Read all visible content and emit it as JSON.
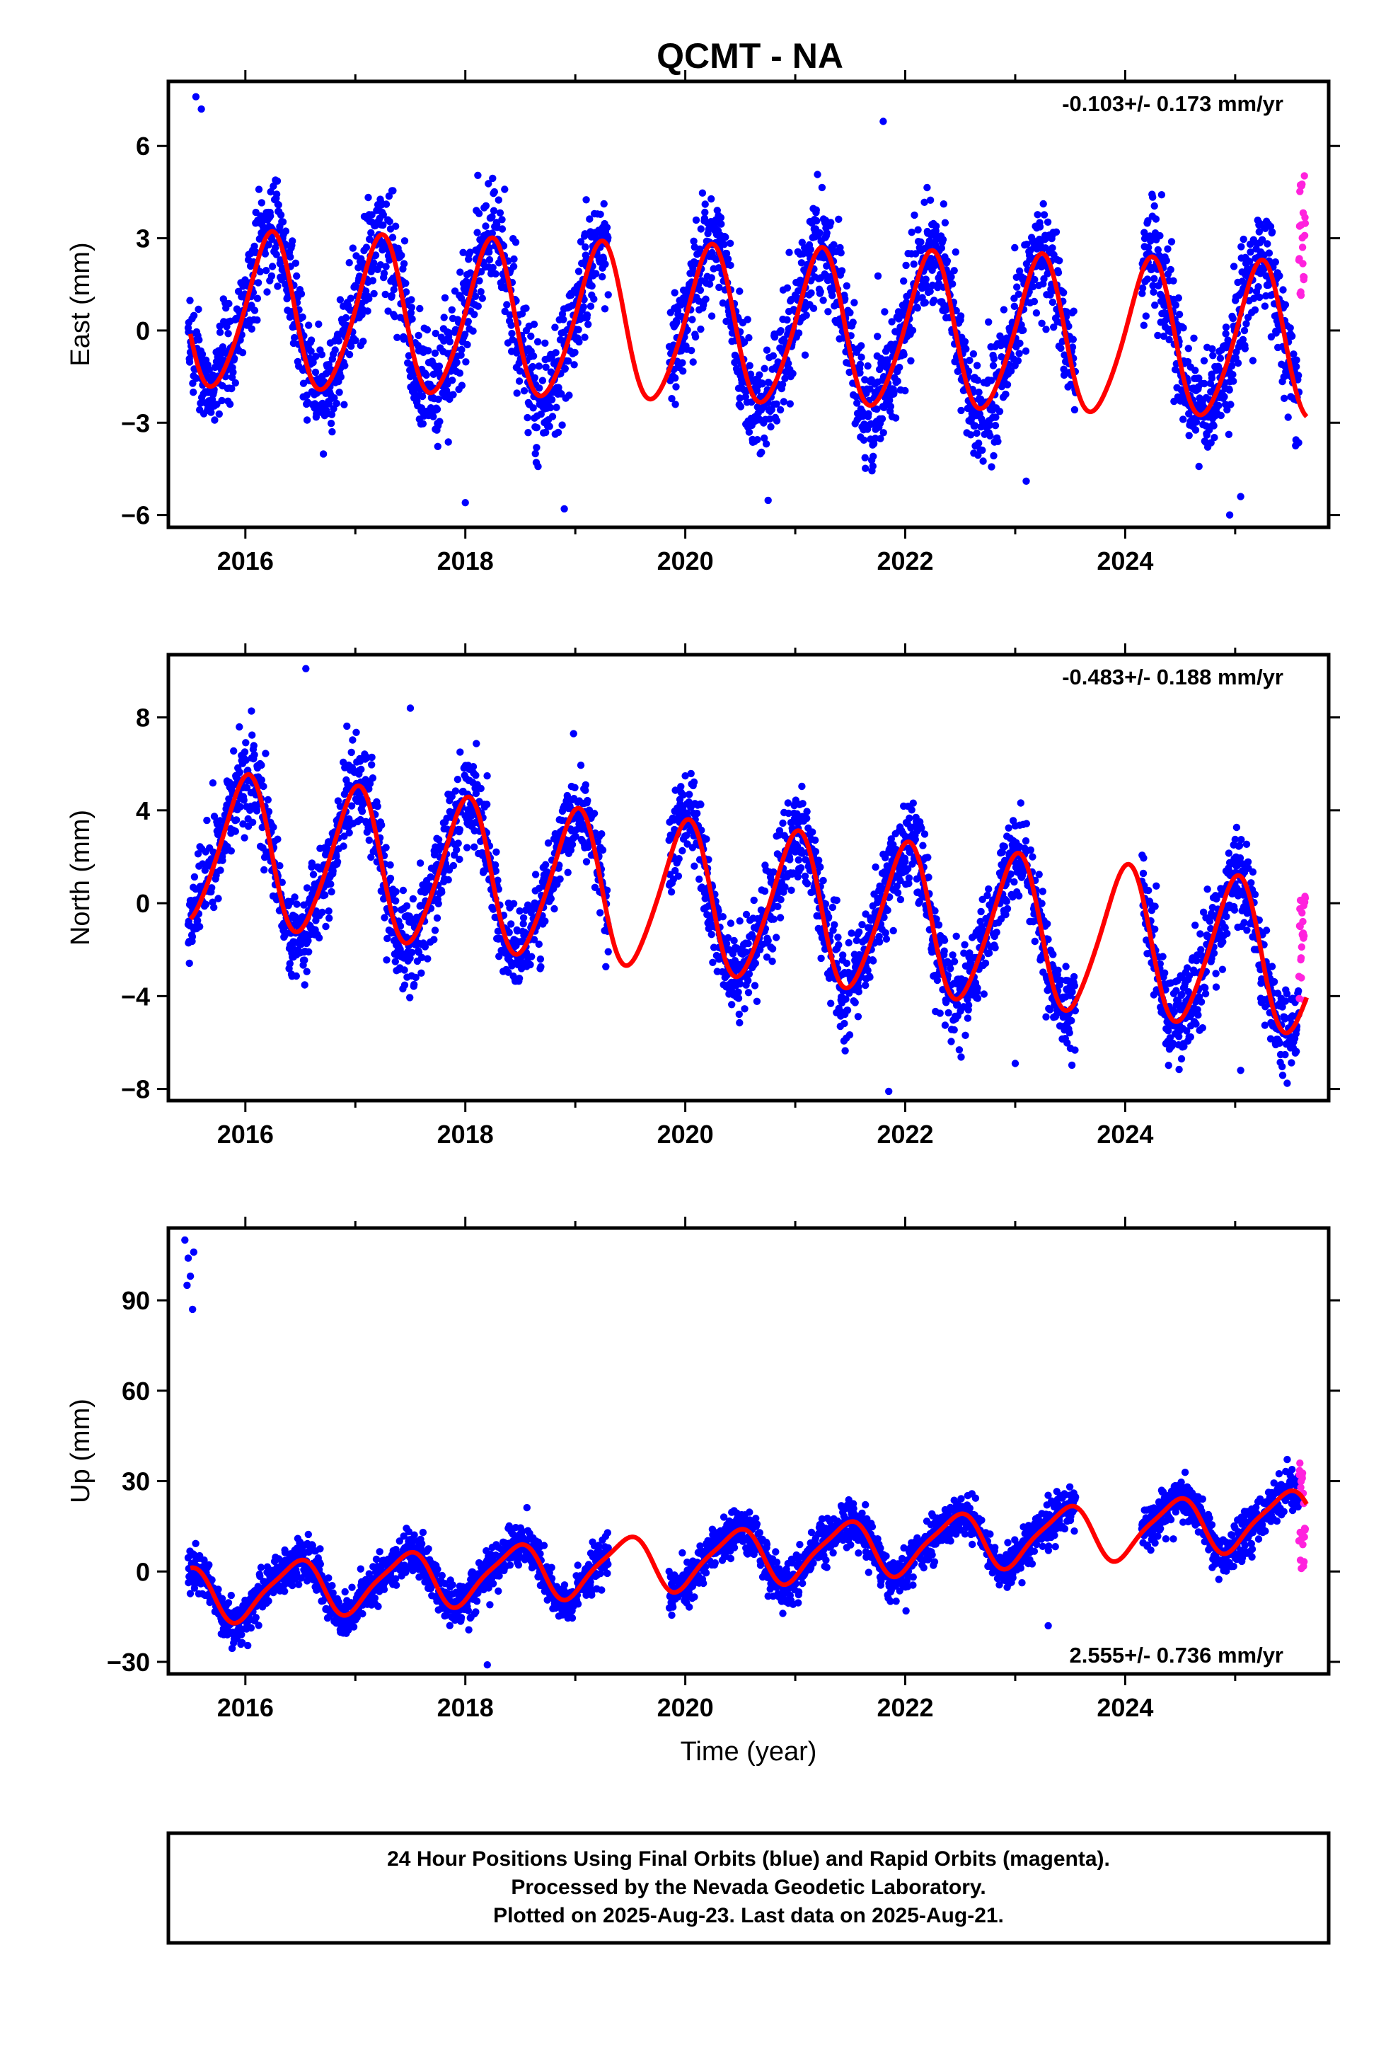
{
  "title": "QCMT - NA",
  "colors": {
    "final": "#0000ff",
    "rapid": "#ff22dd",
    "model": "#ff0000"
  },
  "footer": {
    "line1": "24 Hour Positions Using Final Orbits (blue) and Rapid Orbits (magenta).",
    "line2": "Processed by the Nevada Geodetic Laboratory.",
    "line3": "Plotted on 2025-Aug-23. Last data on 2025-Aug-21."
  },
  "chart_data": [
    {
      "type": "scatter",
      "ylabel": "East (mm)",
      "xlabel": "",
      "rate_label": "-0.103+/- 0.173 mm/yr",
      "rate_position": "top-right",
      "xlim": [
        2015.3,
        2025.85
      ],
      "ylim": [
        -6.4,
        8.1
      ],
      "xticks": [
        2016,
        2018,
        2020,
        2022,
        2024
      ],
      "yticks": [
        -6,
        -3,
        0,
        3,
        6
      ],
      "model": {
        "offset": 0.6,
        "trend": -0.103,
        "amp": 2.5,
        "phase": 0.22,
        "amp2": 0.3,
        "phase2": 0.3
      },
      "scatter_sd": 0.9,
      "rapid_range": [
        1.0,
        6.0
      ],
      "outliers": [
        [
          2015.55,
          7.6
        ],
        [
          2015.6,
          7.2
        ],
        [
          2021.8,
          6.8
        ],
        [
          2018.0,
          -5.6
        ],
        [
          2018.9,
          -5.8
        ],
        [
          2024.95,
          -6.0
        ],
        [
          2025.05,
          -5.4
        ],
        [
          2023.1,
          -4.9
        ]
      ],
      "series": [
        {
          "name": "Final Orbits (blue)",
          "color": "#0000ff"
        },
        {
          "name": "Rapid Orbits (magenta)",
          "color": "#ff22dd"
        }
      ]
    },
    {
      "type": "scatter",
      "ylabel": "North (mm)",
      "xlabel": "",
      "rate_label": "-0.483+/- 0.188 mm/yr",
      "rate_position": "top-right",
      "xlim": [
        2015.3,
        2025.85
      ],
      "ylim": [
        -8.5,
        10.7
      ],
      "xticks": [
        2016,
        2018,
        2020,
        2022,
        2024
      ],
      "yticks": [
        -8,
        -4,
        0,
        4,
        8
      ],
      "model": {
        "offset": 2.4,
        "trend": -0.483,
        "amp": 3.2,
        "phase": 0.0,
        "amp2": 0.4,
        "phase2": 0.1
      },
      "scatter_sd": 1.0,
      "rapid_range": [
        -4.5,
        0.5
      ],
      "outliers": [
        [
          2016.55,
          10.1
        ],
        [
          2017.5,
          8.4
        ],
        [
          2021.85,
          -8.1
        ],
        [
          2025.05,
          -7.2
        ],
        [
          2023.0,
          -6.9
        ]
      ],
      "series": [
        {
          "name": "Final Orbits (blue)",
          "color": "#0000ff"
        },
        {
          "name": "Rapid Orbits (magenta)",
          "color": "#ff22dd"
        }
      ]
    },
    {
      "type": "scatter",
      "ylabel": "Up (mm)",
      "xlabel": "Time (year)",
      "rate_label": "2.555+/- 0.736 mm/yr",
      "rate_position": "bottom-right",
      "xlim": [
        2015.3,
        2025.85
      ],
      "ylim": [
        -34,
        114
      ],
      "xticks": [
        2016,
        2018,
        2020,
        2022,
        2024
      ],
      "yticks": [
        -30,
        0,
        30,
        60,
        90
      ],
      "model": {
        "offset": -8.0,
        "trend": 2.555,
        "amp": 9.0,
        "phase": 0.45,
        "amp2": 2.0,
        "phase2": 0.6
      },
      "scatter_sd": 3.6,
      "rapid_range": [
        0,
        36
      ],
      "outliers": [
        [
          2015.45,
          110
        ],
        [
          2015.48,
          104
        ],
        [
          2015.5,
          98
        ],
        [
          2015.52,
          87
        ],
        [
          2015.47,
          95
        ],
        [
          2015.53,
          106
        ],
        [
          2018.2,
          -31
        ],
        [
          2023.3,
          -18
        ]
      ],
      "series": [
        {
          "name": "Final Orbits (blue)",
          "color": "#0000ff"
        },
        {
          "name": "Rapid Orbits (magenta)",
          "color": "#ff22dd"
        }
      ]
    }
  ]
}
